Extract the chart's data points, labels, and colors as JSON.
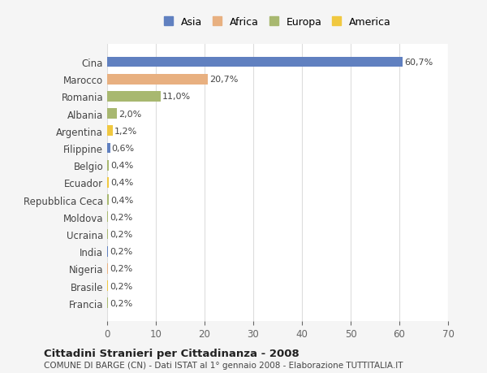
{
  "categories": [
    "Cina",
    "Marocco",
    "Romania",
    "Albania",
    "Argentina",
    "Filippine",
    "Belgio",
    "Ecuador",
    "Repubblica Ceca",
    "Moldova",
    "Ucraina",
    "India",
    "Nigeria",
    "Brasile",
    "Francia"
  ],
  "values": [
    60.7,
    20.7,
    11.0,
    2.0,
    1.2,
    0.6,
    0.4,
    0.4,
    0.4,
    0.2,
    0.2,
    0.2,
    0.2,
    0.2,
    0.2
  ],
  "labels": [
    "60,7%",
    "20,7%",
    "11,0%",
    "2,0%",
    "1,2%",
    "0,6%",
    "0,4%",
    "0,4%",
    "0,4%",
    "0,2%",
    "0,2%",
    "0,2%",
    "0,2%",
    "0,2%",
    "0,2%"
  ],
  "continents": [
    "Asia",
    "Africa",
    "Europa",
    "Europa",
    "America",
    "Asia",
    "Europa",
    "America",
    "Europa",
    "Europa",
    "Europa",
    "Asia",
    "Africa",
    "America",
    "Europa"
  ],
  "continent_colors": {
    "Asia": "#6080c0",
    "Africa": "#e8b080",
    "Europa": "#a8b870",
    "America": "#f0c840"
  },
  "legend_order": [
    "Asia",
    "Africa",
    "Europa",
    "America"
  ],
  "title": "Cittadini Stranieri per Cittadinanza - 2008",
  "subtitle": "COMUNE DI BARGE (CN) - Dati ISTAT al 1° gennaio 2008 - Elaborazione TUTTITALIA.IT",
  "xlim": [
    0,
    70
  ],
  "xticks": [
    0,
    10,
    20,
    30,
    40,
    50,
    60,
    70
  ],
  "bg_color": "#f5f5f5",
  "bar_bg_color": "#ffffff",
  "grid_color": "#dddddd"
}
